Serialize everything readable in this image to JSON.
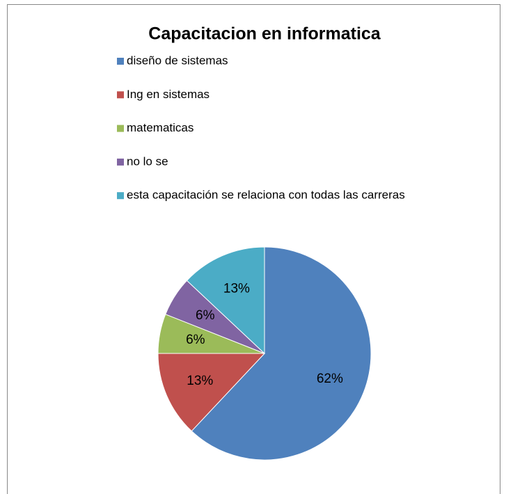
{
  "chart_data": {
    "type": "pie",
    "title": "Capacitacion en informatica",
    "categories": [
      "diseño  de  sistemas",
      "Ing  en sistemas",
      "matematicas",
      "no lo se",
      "esta capacitación se relaciona  con todas las carreras"
    ],
    "values": [
      62,
      13,
      6,
      6,
      13
    ],
    "value_labels": [
      "62%",
      "13%",
      "6%",
      "6%",
      "13%"
    ],
    "colors": [
      "#4f81bd",
      "#c0504d",
      "#9bbb59",
      "#8064a2",
      "#4bacc6"
    ],
    "legend": "top"
  }
}
